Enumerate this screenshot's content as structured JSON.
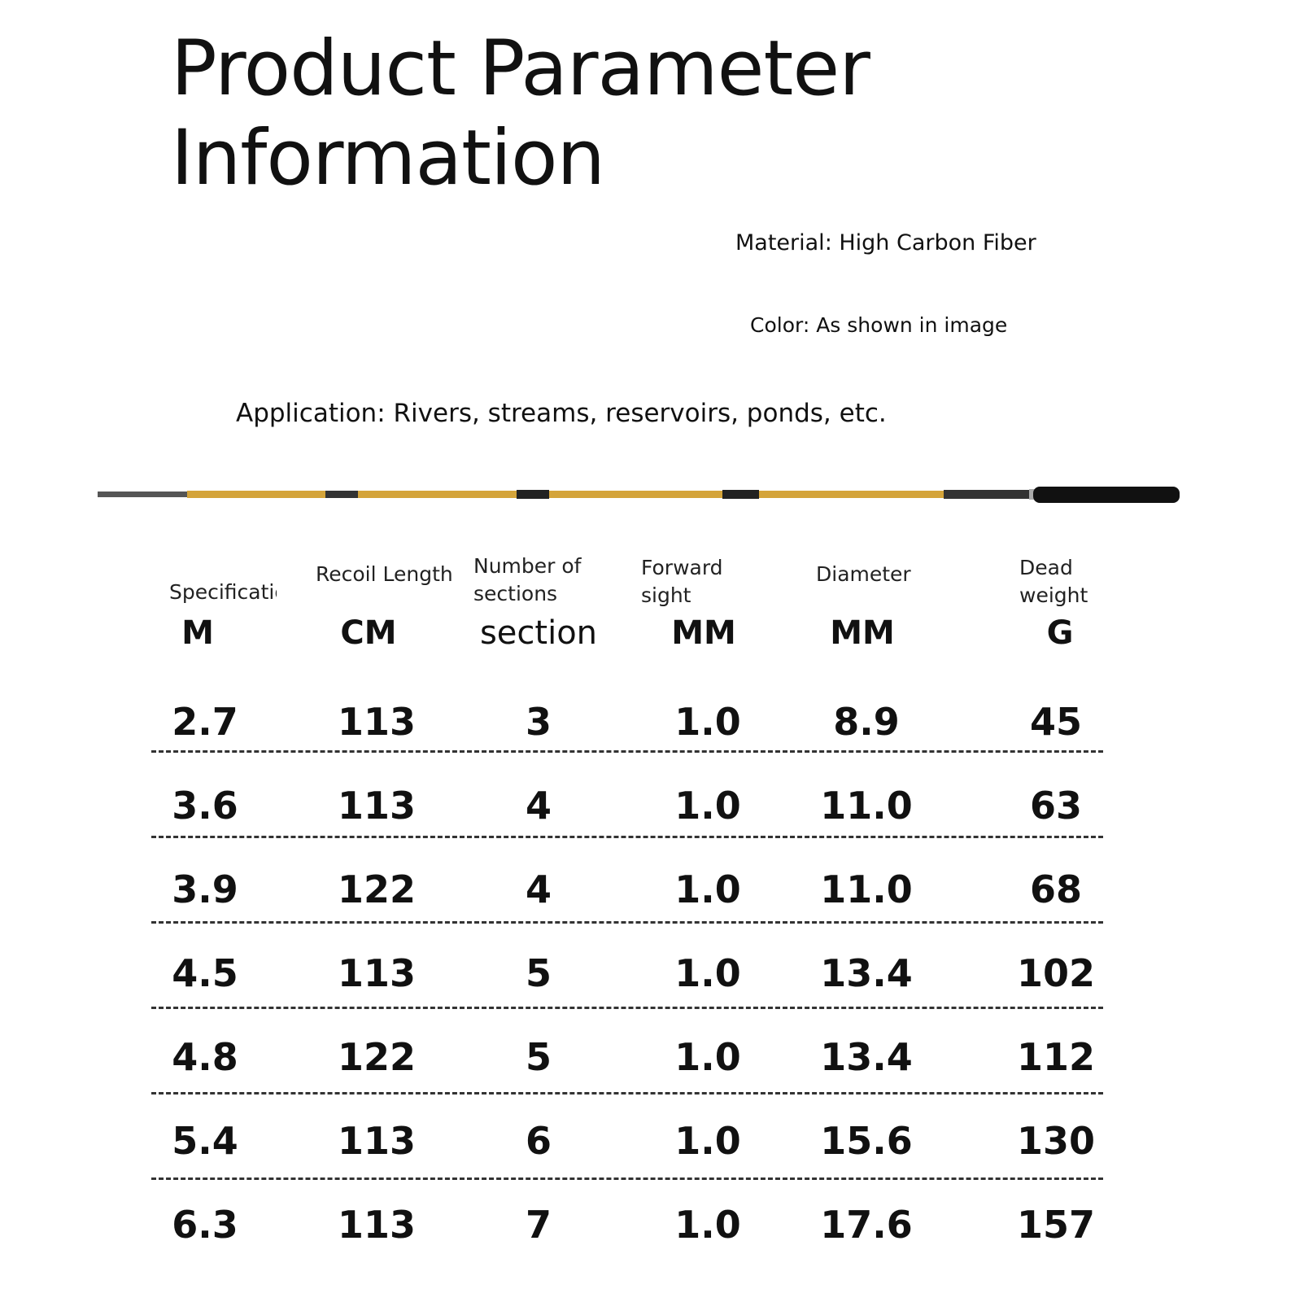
{
  "header": {
    "title": [
      "Product Parameter",
      "Information"
    ]
  },
  "details": {
    "material": "Material: High Carbon Fiber",
    "color": "Color: As shown in image",
    "application": "Application: Rivers, streams, reservoirs, ponds, etc."
  },
  "table": {
    "columns": [
      {
        "label": [
          "Specification"
        ],
        "unit": "M"
      },
      {
        "label": [
          "Recoil Length"
        ],
        "unit": "CM"
      },
      {
        "label": [
          "Number of",
          "sections"
        ],
        "unit": "section"
      },
      {
        "label": [
          "Forward",
          "sight"
        ],
        "unit": "MM"
      },
      {
        "label": [
          "Diameter"
        ],
        "unit": "MM"
      },
      {
        "label": [
          "Dead",
          "weight"
        ],
        "unit": "G"
      }
    ],
    "rows": [
      [
        "2.7",
        "113",
        "3",
        "1.0",
        "8.9",
        "45"
      ],
      [
        "3.6",
        "113",
        "4",
        "1.0",
        "11.0",
        "63"
      ],
      [
        "3.9",
        "122",
        "4",
        "1.0",
        "11.0",
        "68"
      ],
      [
        "4.5",
        "113",
        "5",
        "1.0",
        "13.4",
        "102"
      ],
      [
        "4.8",
        "122",
        "5",
        "1.0",
        "13.4",
        "112"
      ],
      [
        "5.4",
        "113",
        "6",
        "1.0",
        "15.6",
        "130"
      ],
      [
        "6.3",
        "113",
        "7",
        "1.0",
        "17.6",
        "157"
      ]
    ]
  }
}
